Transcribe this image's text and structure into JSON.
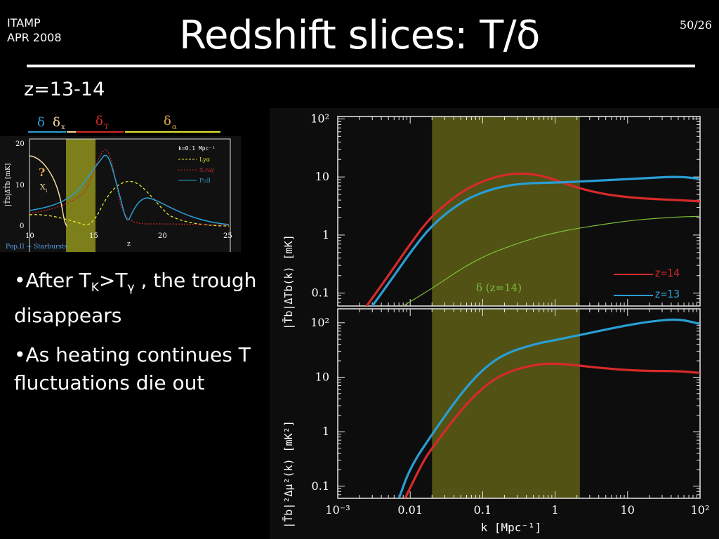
{
  "header": {
    "corner_line1": "ITAMP",
    "corner_line2": "APR 2008",
    "page_number": "50/26",
    "title": "Redshift slices: T/δ"
  },
  "subtitle": "z=13-14",
  "bullets": [
    {
      "prefix": "•After T",
      "sub1": "K",
      "mid": ">T",
      "sub2": "γ",
      "suffix": " , the trough disappears"
    },
    {
      "text": "•As heating continues T fluctuations die out"
    }
  ],
  "inset": {
    "header_labels": [
      "δ",
      "δ",
      "x",
      "δ",
      "T",
      "δ",
      "α"
    ],
    "yticks": [
      "20",
      "10",
      "0"
    ],
    "xticks": [
      "10",
      "15",
      "20",
      "25"
    ],
    "ylabel": "|T̄b|Δ̄T̄b [mK]",
    "xlabel": "z",
    "question": "?",
    "xi": "X",
    "xi_sub": "i",
    "legend_k": "k=0.1 Mpc⁻¹",
    "legend": [
      "Lyα",
      "X-ray",
      "Full"
    ],
    "footer": "Pop.II + Starbursts",
    "colors": {
      "lya": "#e6e62e",
      "xray": "#c0282a",
      "full": "#2a9ed4",
      "cream": "#f3dca0",
      "band": "#8a8c1c"
    }
  },
  "chart_data": [
    {
      "type": "line",
      "xscale": "log",
      "yscale": "log",
      "xlim": [
        0.001,
        100
      ],
      "ylim": [
        0.06,
        110
      ],
      "ylabel": "|T̄b|Δ̄Tb(k) [mK]",
      "yticks": [
        "10²",
        "10",
        "1",
        "0.1"
      ],
      "band": [
        0.02,
        2.2
      ],
      "series": [
        {
          "name": "z=14",
          "color": "#d62a2a",
          "x": [
            0.0025,
            0.005,
            0.01,
            0.02,
            0.05,
            0.1,
            0.2,
            0.35,
            0.6,
            1,
            2,
            5,
            10,
            20,
            50,
            100
          ],
          "y": [
            0.06,
            0.2,
            0.7,
            2.2,
            5.5,
            8.5,
            11,
            11.6,
            10.8,
            9,
            6.5,
            5,
            4.5,
            4.2,
            4.0,
            3.8
          ]
        },
        {
          "name": "z=13",
          "color": "#2a9ed4",
          "x": [
            0.003,
            0.006,
            0.01,
            0.02,
            0.05,
            0.1,
            0.2,
            0.4,
            1,
            2,
            5,
            10,
            20,
            50,
            100
          ],
          "y": [
            0.06,
            0.2,
            0.5,
            1.5,
            3.7,
            5.5,
            7.0,
            7.8,
            8.0,
            8.3,
            8.8,
            9.2,
            9.6,
            10.2,
            9.3
          ]
        },
        {
          "name": "δ (z=14)",
          "color": "#7fbf3a",
          "x": [
            0.008,
            0.02,
            0.05,
            0.1,
            0.2,
            0.5,
            1,
            2,
            5,
            10,
            20,
            50,
            100
          ],
          "y": [
            0.06,
            0.12,
            0.26,
            0.42,
            0.6,
            0.88,
            1.1,
            1.3,
            1.55,
            1.75,
            1.9,
            2.05,
            2.1
          ]
        }
      ]
    },
    {
      "type": "line",
      "xscale": "log",
      "yscale": "log",
      "xlim": [
        0.001,
        100
      ],
      "ylim": [
        0.06,
        180
      ],
      "ylabel": "|T̄b|²Δμ²(k) [mK²]",
      "xlabel": "k [Mpc⁻¹]",
      "xticks": [
        "10⁻³",
        "0.01",
        "0.1",
        "1",
        "10",
        "10²"
      ],
      "yticks": [
        "10²",
        "10",
        "1",
        "0.1"
      ],
      "band": [
        0.02,
        2.2
      ],
      "series": [
        {
          "name": "z=14",
          "color": "#d62a2a",
          "x": [
            0.0085,
            0.015,
            0.02,
            0.05,
            0.1,
            0.2,
            0.5,
            1,
            2,
            5,
            10,
            20,
            50,
            100
          ],
          "y": [
            0.06,
            0.28,
            0.5,
            2.5,
            6.5,
            12,
            17,
            18,
            16.5,
            14.5,
            13.5,
            13,
            13,
            12
          ]
        },
        {
          "name": "z=13",
          "color": "#2a9ed4",
          "x": [
            0.007,
            0.01,
            0.02,
            0.05,
            0.1,
            0.2,
            0.5,
            1,
            2,
            5,
            10,
            20,
            50,
            100
          ],
          "y": [
            0.06,
            0.22,
            0.9,
            5,
            14,
            27,
            40,
            48,
            58,
            75,
            90,
            105,
            118,
            95
          ]
        }
      ]
    }
  ],
  "legend_top": [
    "z=14",
    "z=13"
  ],
  "delta_label": "δ (z=14)"
}
